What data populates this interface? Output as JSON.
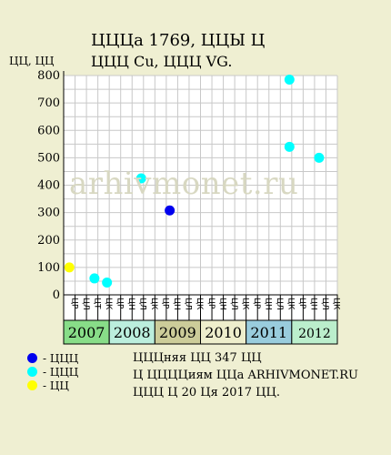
{
  "title_line1": "ЦЦЦа 1769, ЦЦЫ Ц",
  "title_line2": "ЦЦЦ Cu, ЦЦЦ VG.",
  "watermark": "arhivmonet.ru",
  "legend": [
    {
      "label": "- ЦЦЦ",
      "color": "#0000ee"
    },
    {
      "label": "- ЦЦЦ",
      "color": "#00ffff"
    },
    {
      "label": "- ЦЦ",
      "color": "#ffff00"
    }
  ],
  "info_lines": [
    "ЦЦЦняя ЦЦ 347 ЦЦ",
    "Ц ЦЦЦЦиям ЦЦа ARHIVMONET.RU",
    "ЦЦЦ Ц 20 Ця 2017 ЦЦ."
  ],
  "chart_data": {
    "type": "scatter",
    "ylabel": "ЦЦ, ЦЦ",
    "ylim": [
      0,
      800
    ],
    "yticks": [
      0,
      100,
      200,
      300,
      400,
      500,
      600,
      700,
      800
    ],
    "grid": true,
    "month_ticks": [
      "ЦР",
      "ЦЛ",
      "ЦТ",
      "ЦК",
      "ЦР",
      "ЦН",
      "ЦЛ",
      "ЦК",
      "ЦР",
      "ЦН",
      "ЦЛ",
      "ЦК",
      "ЦР",
      "ЦН",
      "ЦЛ",
      "ЦК",
      "ЦР",
      "ЦН",
      "ЦЛ",
      "ЦК",
      "ЦР",
      "ЦН",
      "ЦЛ",
      "ЦК"
    ],
    "years": [
      {
        "label": "2007",
        "start": 0,
        "end": 4,
        "color": "#88dd88"
      },
      {
        "label": "2008",
        "start": 4,
        "end": 8,
        "color": "#bbeedd"
      },
      {
        "label": "2009",
        "start": 8,
        "end": 12,
        "color": "#cccc99"
      },
      {
        "label": "2010",
        "start": 12,
        "end": 16,
        "color": "#eeeecc"
      },
      {
        "label": "2011",
        "start": 16,
        "end": 20,
        "color": "#99ccdd"
      },
      {
        "label": "2012",
        "start": 20,
        "end": 24,
        "color": "#bbeecc"
      }
    ],
    "series": [
      {
        "color": "#ffff00",
        "points": [
          {
            "x": 0.5,
            "y": 100
          }
        ]
      },
      {
        "color": "#00ffff",
        "points": [
          {
            "x": 2.7,
            "y": 60
          },
          {
            "x": 3.8,
            "y": 45
          },
          {
            "x": 6.8,
            "y": 425
          },
          {
            "x": 19.8,
            "y": 540
          },
          {
            "x": 19.8,
            "y": 785
          },
          {
            "x": 22.4,
            "y": 500
          }
        ]
      },
      {
        "color": "#0000ee",
        "points": [
          {
            "x": 9.3,
            "y": 308
          }
        ]
      }
    ]
  }
}
